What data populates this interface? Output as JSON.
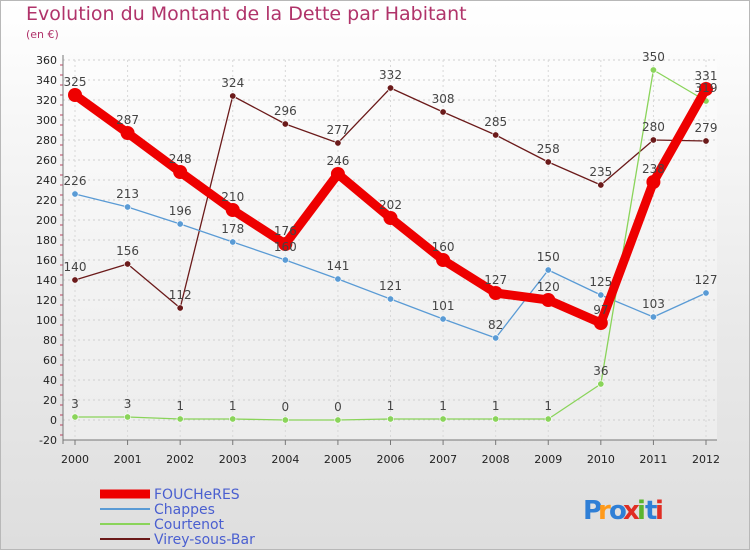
{
  "chart_data": {
    "type": "line",
    "title": "Evolution du Montant de la Dette par Habitant",
    "subtitle": "(en €)",
    "x": [
      "2000",
      "2001",
      "2002",
      "2003",
      "2004",
      "2005",
      "2006",
      "2007",
      "2008",
      "2009",
      "2010",
      "2011",
      "2012"
    ],
    "ylim": [
      -20,
      360
    ],
    "yticks": [
      -20,
      0,
      20,
      40,
      60,
      80,
      100,
      120,
      140,
      160,
      180,
      200,
      220,
      240,
      260,
      280,
      300,
      320,
      340,
      360
    ],
    "grid": true,
    "legend_position": "bottom-left",
    "series": [
      {
        "name": "Virey-sous-Bar",
        "color": "#6b1a1a",
        "values": [
          140,
          156,
          112,
          324,
          296,
          277,
          332,
          308,
          285,
          258,
          235,
          280,
          279
        ]
      },
      {
        "name": "Chappes",
        "color": "#5a9bd5",
        "values": [
          226,
          213,
          196,
          178,
          160,
          141,
          121,
          101,
          82,
          150,
          125,
          103,
          127
        ]
      },
      {
        "name": "Courtenot",
        "color": "#8ad45a",
        "values": [
          3,
          3,
          1,
          1,
          0,
          0,
          1,
          1,
          1,
          1,
          36,
          350,
          319
        ]
      },
      {
        "name": "FOUCHeRES",
        "color": "#ee0000",
        "values": [
          325,
          287,
          248,
          210,
          176,
          246,
          202,
          160,
          127,
          120,
          97,
          238,
          331
        ]
      }
    ]
  },
  "legend_order": [
    "FOUCHeRES",
    "Chappes",
    "Courtenot",
    "Virey-sous-Bar"
  ],
  "logo": {
    "text": "Proxiti"
  }
}
